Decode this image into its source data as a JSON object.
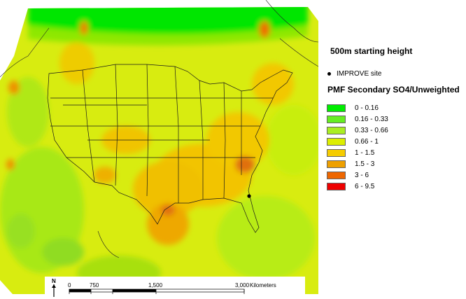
{
  "map": {
    "starting_height_title": "500m starting height",
    "site_legend_label": "IMPROVE site",
    "legend_title": "PMF Secondary SO4/Unweighted",
    "classes": [
      {
        "label": "0 - 0.16",
        "color": "#00ee00"
      },
      {
        "label": "0.16 - 0.33",
        "color": "#66ee22"
      },
      {
        "label": "0.33 - 0.66",
        "color": "#aaee22"
      },
      {
        "label": "0.66 - 1",
        "color": "#ddee00"
      },
      {
        "label": "1 - 1.5",
        "color": "#f5cc00"
      },
      {
        "label": "1.5 - 3",
        "color": "#eea000"
      },
      {
        "label": "3 - 6",
        "color": "#ee6600"
      },
      {
        "label": "6 - 9.5",
        "color": "#ee0000"
      }
    ],
    "scalebar": {
      "ticks": [
        "0",
        "750",
        "1,500",
        "3,000"
      ],
      "unit": "Kilometers",
      "north_label": "N"
    },
    "site_marker": "IMPROVE site"
  }
}
